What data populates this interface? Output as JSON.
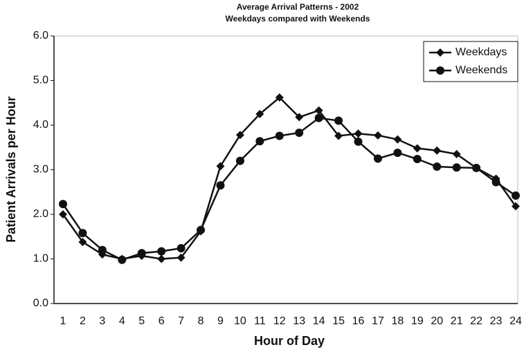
{
  "chart_data": {
    "type": "line",
    "title": "Average Arrival Patterns - 2002",
    "subtitle": "Weekdays compared with Weekends",
    "x_label": "Hour of Day",
    "y_label": "Patient Arrivals per Hour",
    "categories": [
      "1",
      "2",
      "3",
      "4",
      "5",
      "6",
      "7",
      "8",
      "9",
      "10",
      "11",
      "12",
      "13",
      "14",
      "15",
      "16",
      "17",
      "18",
      "19",
      "20",
      "21",
      "22",
      "23",
      "24"
    ],
    "series": [
      {
        "name": "Weekdays",
        "color": "#111111",
        "marker": "diamond",
        "values": [
          2.0,
          1.38,
          1.1,
          1.0,
          1.07,
          1.0,
          1.03,
          1.62,
          3.08,
          3.78,
          4.25,
          4.62,
          4.18,
          4.33,
          3.76,
          3.81,
          3.77,
          3.68,
          3.48,
          3.43,
          3.35,
          3.04,
          2.8,
          2.18
        ]
      },
      {
        "name": "Weekends",
        "color": "#111111",
        "marker": "circle",
        "values": [
          2.23,
          1.58,
          1.2,
          0.98,
          1.13,
          1.17,
          1.24,
          1.65,
          2.65,
          3.2,
          3.64,
          3.76,
          3.83,
          4.16,
          4.1,
          3.63,
          3.25,
          3.38,
          3.24,
          3.07,
          3.05,
          3.04,
          2.72,
          2.42
        ]
      }
    ],
    "ylim": [
      0,
      6
    ],
    "yticks": [
      {
        "value": 0,
        "label": "0.0"
      },
      {
        "value": 1,
        "label": "1.0"
      },
      {
        "value": 2,
        "label": "2.0"
      },
      {
        "value": 3,
        "label": "3.0"
      },
      {
        "value": 4,
        "label": "4.0"
      },
      {
        "value": 5,
        "label": "5.0"
      },
      {
        "value": 6,
        "label": "6.0"
      }
    ],
    "grid": false,
    "legend": "top-right"
  }
}
